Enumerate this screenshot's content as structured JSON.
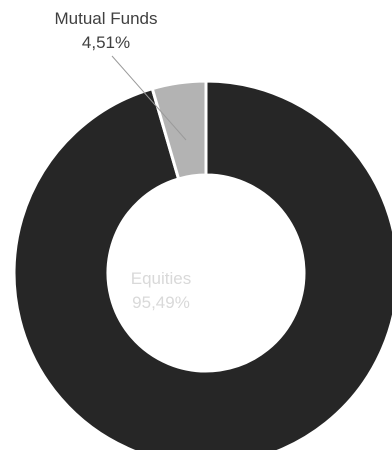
{
  "chart_data": {
    "type": "pie",
    "donut": true,
    "start_angle_deg": 0,
    "direction": "clockwise",
    "slices": [
      {
        "name": "Equities",
        "value": 95.49,
        "value_label": "95,49%",
        "color": "#262626"
      },
      {
        "name": "Mutual Funds",
        "value": 4.51,
        "value_label": "4,51%",
        "color": "#b3b3b3"
      }
    ],
    "title": "",
    "legend": "none",
    "separator_color": "#ffffff"
  }
}
